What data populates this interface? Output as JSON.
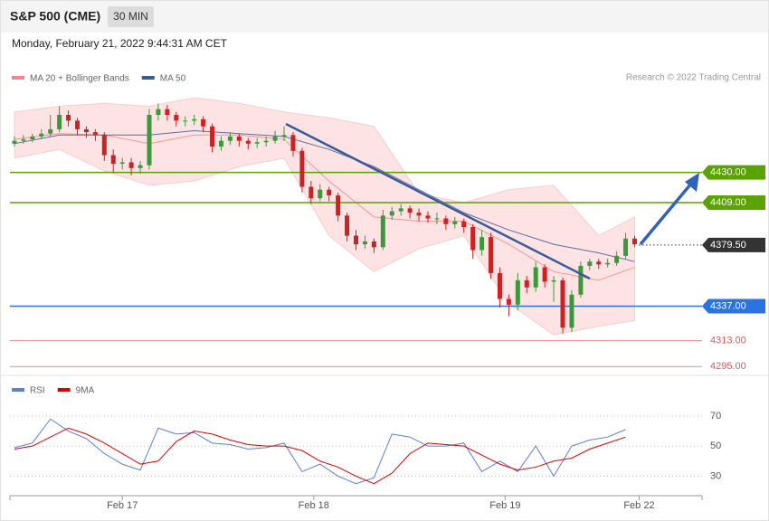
{
  "header": {
    "title": "S&P 500 (CME)",
    "timeframe": "30 MIN",
    "date": "Monday, February 21, 2022 9:44:31 AM CET",
    "copyright": "Research © 2022 Trading Central"
  },
  "chart_data": [
    {
      "type": "candlestick",
      "xlim": [
        0,
        77
      ],
      "ylim": [
        4292,
        4487
      ],
      "up_color": "#3a9a3a",
      "down_color": "#cc2222",
      "candles": [
        [
          4450,
          4455,
          4448,
          4452
        ],
        [
          4452,
          4456,
          4450,
          4453
        ],
        [
          4453,
          4457,
          4451,
          4455
        ],
        [
          4455,
          4460,
          4453,
          4457
        ],
        [
          4457,
          4470,
          4455,
          4460
        ],
        [
          4460,
          4476,
          4458,
          4470
        ],
        [
          4470,
          4473,
          4462,
          4466
        ],
        [
          4466,
          4468,
          4456,
          4460
        ],
        [
          4460,
          4462,
          4454,
          4458
        ],
        [
          4458,
          4460,
          4452,
          4456
        ],
        [
          4456,
          4458,
          4438,
          4442
        ],
        [
          4442,
          4446,
          4430,
          4436
        ],
        [
          4436,
          4440,
          4432,
          4437
        ],
        [
          4437,
          4440,
          4428,
          4433
        ],
        [
          4433,
          4438,
          4429,
          4435
        ],
        [
          4435,
          4474,
          4432,
          4470
        ],
        [
          4470,
          4478,
          4466,
          4474
        ],
        [
          4474,
          4477,
          4466,
          4470
        ],
        [
          4470,
          4472,
          4462,
          4466
        ],
        [
          4466,
          4469,
          4462,
          4466
        ],
        [
          4466,
          4470,
          4463,
          4467
        ],
        [
          4467,
          4469,
          4458,
          4462
        ],
        [
          4462,
          4464,
          4444,
          4448
        ],
        [
          4448,
          4455,
          4445,
          4452
        ],
        [
          4452,
          4458,
          4449,
          4455
        ],
        [
          4455,
          4457,
          4448,
          4452
        ],
        [
          4452,
          4454,
          4446,
          4450
        ],
        [
          4450,
          4454,
          4447,
          4451
        ],
        [
          4451,
          4455,
          4448,
          4452
        ],
        [
          4452,
          4459,
          4450,
          4455
        ],
        [
          4455,
          4462,
          4452,
          4456
        ],
        [
          4456,
          4458,
          4441,
          4445
        ],
        [
          4445,
          4447,
          4416,
          4420
        ],
        [
          4420,
          4424,
          4408,
          4412
        ],
        [
          4412,
          4422,
          4410,
          4418
        ],
        [
          4418,
          4420,
          4410,
          4414
        ],
        [
          4414,
          4416,
          4396,
          4400
        ],
        [
          4400,
          4402,
          4382,
          4386
        ],
        [
          4386,
          4390,
          4376,
          4380
        ],
        [
          4380,
          4386,
          4377,
          4382
        ],
        [
          4382,
          4384,
          4374,
          4378
        ],
        [
          4378,
          4404,
          4376,
          4400
        ],
        [
          4400,
          4406,
          4397,
          4403
        ],
        [
          4403,
          4408,
          4400,
          4405
        ],
        [
          4405,
          4407,
          4398,
          4402
        ],
        [
          4402,
          4405,
          4396,
          4400
        ],
        [
          4400,
          4403,
          4395,
          4398
        ],
        [
          4398,
          4402,
          4394,
          4398
        ],
        [
          4398,
          4400,
          4390,
          4394
        ],
        [
          4394,
          4399,
          4391,
          4396
        ],
        [
          4396,
          4398,
          4388,
          4392
        ],
        [
          4392,
          4394,
          4370,
          4376
        ],
        [
          4376,
          4390,
          4372,
          4385
        ],
        [
          4385,
          4388,
          4356,
          4360
        ],
        [
          4360,
          4364,
          4336,
          4342
        ],
        [
          4342,
          4345,
          4330,
          4338
        ],
        [
          4338,
          4360,
          4334,
          4355
        ],
        [
          4355,
          4358,
          4346,
          4350
        ],
        [
          4350,
          4368,
          4347,
          4364
        ],
        [
          4364,
          4366,
          4350,
          4354
        ],
        [
          4354,
          4358,
          4340,
          4355
        ],
        [
          4355,
          4357,
          4318,
          4322
        ],
        [
          4322,
          4348,
          4319,
          4345
        ],
        [
          4345,
          4368,
          4343,
          4365
        ],
        [
          4365,
          4370,
          4362,
          4368
        ],
        [
          4368,
          4370,
          4363,
          4366
        ],
        [
          4366,
          4370,
          4364,
          4367
        ],
        [
          4367,
          4375,
          4365,
          4372
        ],
        [
          4372,
          4388,
          4370,
          4384
        ],
        [
          4384,
          4386,
          4378,
          4380
        ]
      ],
      "ma_x": [
        0,
        5,
        10,
        15,
        20,
        25,
        30,
        35,
        40,
        45,
        50,
        55,
        60,
        65,
        69
      ],
      "series": [
        {
          "name": "MA 20 + Bollinger Bands",
          "color": "#f08a8a",
          "values": [
            4453,
            4457,
            4456,
            4450,
            4456,
            4456,
            4453,
            4424,
            4399,
            4396,
            4396,
            4380,
            4361,
            4355,
            4364
          ],
          "upper": [
            4472,
            4476,
            4478,
            4476,
            4482,
            4478,
            4472,
            4468,
            4462,
            4415,
            4409,
            4418,
            4421,
            4386,
            4399
          ],
          "lower": [
            4440,
            4446,
            4431,
            4421,
            4424,
            4434,
            4440,
            4386,
            4361,
            4377,
            4386,
            4339,
            4317,
            4323,
            4327
          ]
        },
        {
          "name": "MA 50",
          "color": "#3d5a98",
          "values": [
            4450,
            4456,
            4456,
            4456,
            4459,
            4457,
            4455,
            4446,
            4434,
            4418,
            4402,
            4390,
            4380,
            4374,
            4368
          ]
        }
      ],
      "levels": [
        {
          "value": 4430,
          "label": "4430.00",
          "color": "#5aa300",
          "style": "badge"
        },
        {
          "value": 4409,
          "label": "4409.00",
          "color": "#5aa300",
          "style": "badge"
        },
        {
          "value": 4379.5,
          "label": "4379.50",
          "color": "#333333",
          "style": "dotted"
        },
        {
          "value": 4337,
          "label": "4337.00",
          "color": "#2b73e0",
          "style": "badge"
        },
        {
          "value": 4313,
          "label": "4313.00",
          "color": "#e05a5a",
          "style": "text"
        },
        {
          "value": 4295,
          "label": "4295.00",
          "color": "#e05a5a",
          "style": "text"
        }
      ]
    },
    {
      "type": "line",
      "xlim": [
        0,
        77
      ],
      "ylim": [
        17,
        82
      ],
      "yticks": [
        70,
        50,
        30
      ],
      "xticks": [
        {
          "value": 12.5,
          "label": "Feb 17"
        },
        {
          "value": 33.8,
          "label": "Feb 18"
        },
        {
          "value": 55.1,
          "label": "Feb 19"
        },
        {
          "value": 70,
          "label": "Feb 22"
        }
      ],
      "x": [
        0,
        2,
        4,
        6,
        8,
        10,
        12,
        14,
        16,
        18,
        20,
        22,
        24,
        26,
        28,
        30,
        32,
        34,
        36,
        38,
        40,
        42,
        44,
        46,
        48,
        50,
        52,
        54,
        56,
        58,
        60,
        62,
        64,
        66,
        68
      ],
      "series": [
        {
          "name": "RSI",
          "color": "#5b7fd6",
          "values": [
            49,
            52,
            68,
            60,
            55,
            45,
            38,
            34,
            62,
            58,
            59,
            52,
            51,
            48,
            49,
            52,
            33,
            38,
            30,
            25,
            29,
            58,
            56,
            50,
            50,
            52,
            33,
            40,
            33,
            50,
            30,
            50,
            54,
            56,
            61
          ]
        },
        {
          "name": "9MA",
          "color": "#e00000",
          "values": [
            48,
            50,
            56,
            62,
            58,
            52,
            45,
            38,
            40,
            53,
            60,
            58,
            54,
            51,
            50,
            50,
            47,
            40,
            36,
            30,
            25,
            32,
            45,
            52,
            51,
            50,
            44,
            38,
            34,
            36,
            40,
            42,
            48,
            52,
            56
          ]
        }
      ]
    }
  ]
}
